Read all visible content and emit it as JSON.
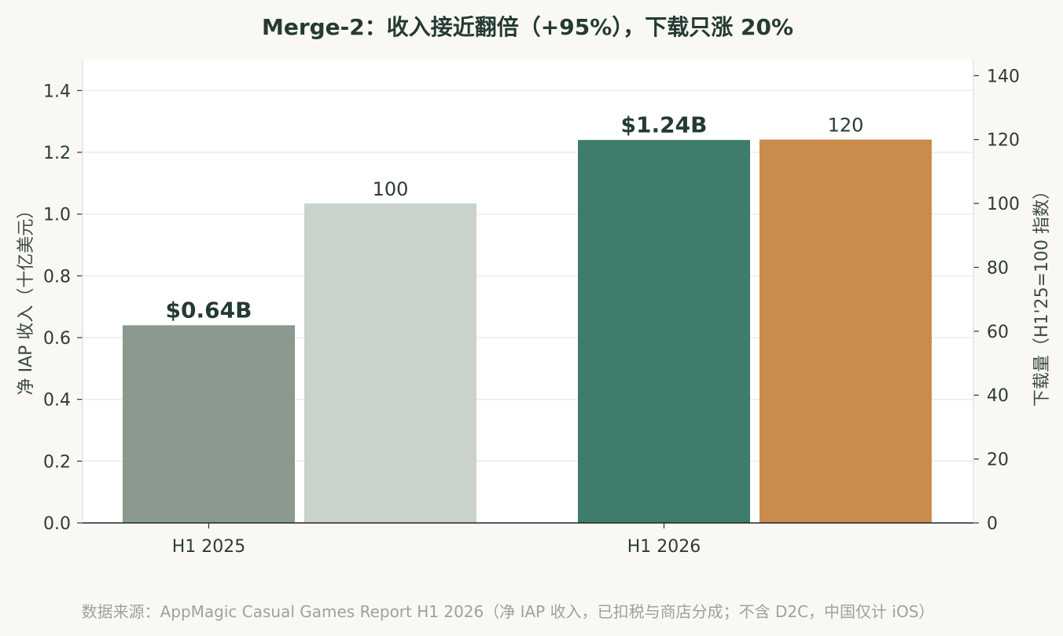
{
  "chart_data": {
    "type": "bar",
    "title": "Merge-2：收入接近翻倍（+95%），下载只涨 20%",
    "categories": [
      "H1 2025",
      "H1 2026"
    ],
    "series": [
      {
        "axis": "left",
        "values": [
          0.64,
          1.24
        ],
        "labels": [
          "$0.64B",
          "$1.24B"
        ],
        "colors": [
          "#8a9a8e",
          "#3e7c6b"
        ]
      },
      {
        "axis": "right",
        "values": [
          100,
          120
        ],
        "labels": [
          "100",
          "120"
        ],
        "colors": [
          "#c9d3cb",
          "#c98c4c"
        ]
      }
    ],
    "ylabel": "净 IAP 收入（十亿美元）",
    "ylim": [
      0,
      1.5
    ],
    "yticks": [
      "0.0",
      "0.2",
      "0.4",
      "0.6",
      "0.8",
      "1.0",
      "1.2",
      "1.4"
    ],
    "y2label": "下载量（H1'25=100 指数）",
    "y2lim": [
      0,
      145
    ],
    "y2ticks": [
      "0",
      "20",
      "40",
      "60",
      "80",
      "100",
      "120",
      "140"
    ],
    "grid": true
  },
  "source_note": "数据来源：AppMagic Casual Games Report H1 2026（净 IAP 收入，已扣税与商店分成；不含 D2C，中国仅计 iOS）"
}
